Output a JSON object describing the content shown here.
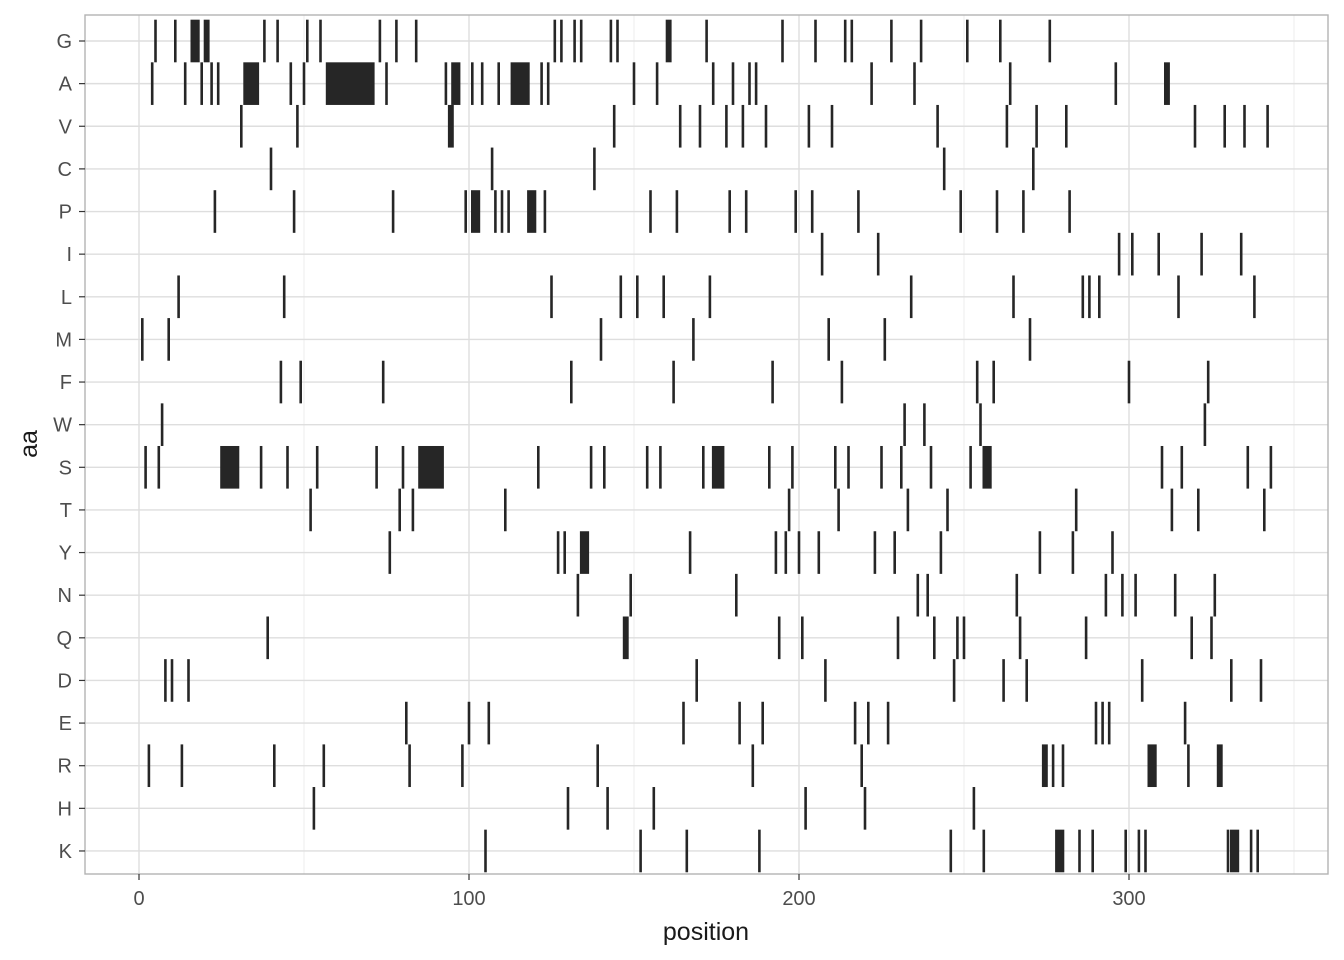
{
  "chart_data": {
    "type": "heatmap",
    "subtype": "tile / barcode plot",
    "title": "",
    "xlabel": "position",
    "ylabel": "aa",
    "xlim": [
      -16,
      360
    ],
    "x_ticks": [
      0,
      100,
      200,
      300
    ],
    "x_minor_gridlines": [
      50,
      150,
      250,
      350
    ],
    "grid": true,
    "legend": "none",
    "fill_color": "#262626",
    "categories": [
      "G",
      "A",
      "V",
      "C",
      "P",
      "I",
      "L",
      "M",
      "F",
      "W",
      "S",
      "T",
      "Y",
      "N",
      "Q",
      "D",
      "E",
      "R",
      "H",
      "K"
    ],
    "series": [
      {
        "name": "G",
        "segments": [
          [
            5,
            5
          ],
          [
            11,
            11
          ],
          [
            16,
            18
          ],
          [
            20,
            21
          ],
          [
            38,
            38
          ],
          [
            42,
            42
          ],
          [
            51,
            51
          ],
          [
            55,
            55
          ],
          [
            73,
            73
          ],
          [
            78,
            78
          ],
          [
            84,
            84
          ],
          [
            126,
            126
          ],
          [
            128,
            128
          ],
          [
            132,
            132
          ],
          [
            134,
            134
          ],
          [
            143,
            143
          ],
          [
            145,
            145
          ],
          [
            160,
            161
          ],
          [
            172,
            172
          ],
          [
            195,
            195
          ],
          [
            205,
            205
          ],
          [
            214,
            214
          ],
          [
            216,
            216
          ],
          [
            228,
            228
          ],
          [
            237,
            237
          ],
          [
            251,
            251
          ],
          [
            261,
            261
          ],
          [
            276,
            276
          ]
        ]
      },
      {
        "name": "A",
        "segments": [
          [
            4,
            4
          ],
          [
            14,
            14
          ],
          [
            19,
            19
          ],
          [
            22,
            22
          ],
          [
            24,
            24
          ],
          [
            32,
            36
          ],
          [
            46,
            46
          ],
          [
            50,
            50
          ],
          [
            57,
            71
          ],
          [
            75,
            75
          ],
          [
            93,
            93
          ],
          [
            95,
            97
          ],
          [
            101,
            101
          ],
          [
            104,
            104
          ],
          [
            109,
            109
          ],
          [
            113,
            118
          ],
          [
            122,
            122
          ],
          [
            124,
            124
          ],
          [
            150,
            150
          ],
          [
            157,
            157
          ],
          [
            174,
            174
          ],
          [
            180,
            180
          ],
          [
            185,
            185
          ],
          [
            187,
            187
          ],
          [
            222,
            222
          ],
          [
            235,
            235
          ],
          [
            264,
            264
          ],
          [
            296,
            296
          ],
          [
            311,
            312
          ]
        ]
      },
      {
        "name": "V",
        "segments": [
          [
            31,
            31
          ],
          [
            48,
            48
          ],
          [
            94,
            95
          ],
          [
            144,
            144
          ],
          [
            164,
            164
          ],
          [
            170,
            170
          ],
          [
            178,
            178
          ],
          [
            183,
            183
          ],
          [
            190,
            190
          ],
          [
            203,
            203
          ],
          [
            210,
            210
          ],
          [
            242,
            242
          ],
          [
            263,
            263
          ],
          [
            272,
            272
          ],
          [
            281,
            281
          ],
          [
            320,
            320
          ],
          [
            329,
            329
          ],
          [
            335,
            335
          ],
          [
            342,
            342
          ]
        ]
      },
      {
        "name": "C",
        "segments": [
          [
            40,
            40
          ],
          [
            107,
            107
          ],
          [
            138,
            138
          ],
          [
            244,
            244
          ],
          [
            271,
            271
          ]
        ]
      },
      {
        "name": "P",
        "segments": [
          [
            23,
            23
          ],
          [
            47,
            47
          ],
          [
            77,
            77
          ],
          [
            99,
            99
          ],
          [
            101,
            103
          ],
          [
            108,
            108
          ],
          [
            110,
            110
          ],
          [
            112,
            112
          ],
          [
            118,
            120
          ],
          [
            123,
            123
          ],
          [
            155,
            155
          ],
          [
            163,
            163
          ],
          [
            179,
            179
          ],
          [
            184,
            184
          ],
          [
            199,
            199
          ],
          [
            204,
            204
          ],
          [
            218,
            218
          ],
          [
            249,
            249
          ],
          [
            260,
            260
          ],
          [
            268,
            268
          ],
          [
            282,
            282
          ]
        ]
      },
      {
        "name": "I",
        "segments": [
          [
            207,
            207
          ],
          [
            224,
            224
          ],
          [
            297,
            297
          ],
          [
            301,
            301
          ],
          [
            309,
            309
          ],
          [
            322,
            322
          ],
          [
            334,
            334
          ]
        ]
      },
      {
        "name": "L",
        "segments": [
          [
            12,
            12
          ],
          [
            44,
            44
          ],
          [
            125,
            125
          ],
          [
            146,
            146
          ],
          [
            151,
            151
          ],
          [
            159,
            159
          ],
          [
            173,
            173
          ],
          [
            234,
            234
          ],
          [
            265,
            265
          ],
          [
            286,
            286
          ],
          [
            288,
            288
          ],
          [
            291,
            291
          ],
          [
            315,
            315
          ],
          [
            338,
            338
          ]
        ]
      },
      {
        "name": "M",
        "segments": [
          [
            1,
            1
          ],
          [
            9,
            9
          ],
          [
            140,
            140
          ],
          [
            168,
            168
          ],
          [
            209,
            209
          ],
          [
            226,
            226
          ],
          [
            270,
            270
          ]
        ]
      },
      {
        "name": "F",
        "segments": [
          [
            43,
            43
          ],
          [
            49,
            49
          ],
          [
            74,
            74
          ],
          [
            131,
            131
          ],
          [
            162,
            162
          ],
          [
            192,
            192
          ],
          [
            213,
            213
          ],
          [
            254,
            254
          ],
          [
            259,
            259
          ],
          [
            300,
            300
          ],
          [
            324,
            324
          ]
        ]
      },
      {
        "name": "W",
        "segments": [
          [
            7,
            7
          ],
          [
            232,
            232
          ],
          [
            238,
            238
          ],
          [
            255,
            255
          ],
          [
            323,
            323
          ]
        ]
      },
      {
        "name": "S",
        "segments": [
          [
            2,
            2
          ],
          [
            6,
            6
          ],
          [
            25,
            30
          ],
          [
            37,
            37
          ],
          [
            45,
            45
          ],
          [
            54,
            54
          ],
          [
            72,
            72
          ],
          [
            80,
            80
          ],
          [
            85,
            92
          ],
          [
            121,
            121
          ],
          [
            137,
            137
          ],
          [
            141,
            141
          ],
          [
            154,
            154
          ],
          [
            158,
            158
          ],
          [
            171,
            171
          ],
          [
            174,
            177
          ],
          [
            191,
            191
          ],
          [
            198,
            198
          ],
          [
            211,
            211
          ],
          [
            215,
            215
          ],
          [
            225,
            225
          ],
          [
            231,
            231
          ],
          [
            240,
            240
          ],
          [
            252,
            252
          ],
          [
            256,
            258
          ],
          [
            310,
            310
          ],
          [
            316,
            316
          ],
          [
            336,
            336
          ],
          [
            343,
            343
          ]
        ]
      },
      {
        "name": "T",
        "segments": [
          [
            52,
            52
          ],
          [
            79,
            79
          ],
          [
            83,
            83
          ],
          [
            111,
            111
          ],
          [
            197,
            197
          ],
          [
            212,
            212
          ],
          [
            233,
            233
          ],
          [
            245,
            245
          ],
          [
            284,
            284
          ],
          [
            313,
            313
          ],
          [
            321,
            321
          ],
          [
            341,
            341
          ]
        ]
      },
      {
        "name": "Y",
        "segments": [
          [
            76,
            76
          ],
          [
            127,
            127
          ],
          [
            129,
            129
          ],
          [
            134,
            136
          ],
          [
            167,
            167
          ],
          [
            193,
            193
          ],
          [
            196,
            196
          ],
          [
            200,
            200
          ],
          [
            206,
            206
          ],
          [
            223,
            223
          ],
          [
            229,
            229
          ],
          [
            243,
            243
          ],
          [
            273,
            273
          ],
          [
            283,
            283
          ],
          [
            295,
            295
          ]
        ]
      },
      {
        "name": "N",
        "segments": [
          [
            133,
            133
          ],
          [
            149,
            149
          ],
          [
            181,
            181
          ],
          [
            236,
            236
          ],
          [
            239,
            239
          ],
          [
            266,
            266
          ],
          [
            293,
            293
          ],
          [
            298,
            298
          ],
          [
            302,
            302
          ],
          [
            314,
            314
          ],
          [
            326,
            326
          ]
        ]
      },
      {
        "name": "Q",
        "segments": [
          [
            39,
            39
          ],
          [
            147,
            148
          ],
          [
            194,
            194
          ],
          [
            201,
            201
          ],
          [
            230,
            230
          ],
          [
            241,
            241
          ],
          [
            248,
            248
          ],
          [
            250,
            250
          ],
          [
            267,
            267
          ],
          [
            287,
            287
          ],
          [
            319,
            319
          ],
          [
            325,
            325
          ]
        ]
      },
      {
        "name": "D",
        "segments": [
          [
            8,
            8
          ],
          [
            10,
            10
          ],
          [
            15,
            15
          ],
          [
            169,
            169
          ],
          [
            208,
            208
          ],
          [
            247,
            247
          ],
          [
            262,
            262
          ],
          [
            269,
            269
          ],
          [
            304,
            304
          ],
          [
            331,
            331
          ],
          [
            340,
            340
          ]
        ]
      },
      {
        "name": "E",
        "segments": [
          [
            81,
            81
          ],
          [
            100,
            100
          ],
          [
            106,
            106
          ],
          [
            165,
            165
          ],
          [
            182,
            182
          ],
          [
            189,
            189
          ],
          [
            217,
            217
          ],
          [
            221,
            221
          ],
          [
            227,
            227
          ],
          [
            290,
            290
          ],
          [
            292,
            292
          ],
          [
            294,
            294
          ],
          [
            317,
            317
          ]
        ]
      },
      {
        "name": "R",
        "segments": [
          [
            3,
            3
          ],
          [
            13,
            13
          ],
          [
            41,
            41
          ],
          [
            56,
            56
          ],
          [
            82,
            82
          ],
          [
            98,
            98
          ],
          [
            139,
            139
          ],
          [
            186,
            186
          ],
          [
            219,
            219
          ],
          [
            274,
            275
          ],
          [
            277,
            277
          ],
          [
            280,
            280
          ],
          [
            306,
            308
          ],
          [
            318,
            318
          ],
          [
            327,
            328
          ]
        ]
      },
      {
        "name": "H",
        "segments": [
          [
            53,
            53
          ],
          [
            130,
            130
          ],
          [
            142,
            142
          ],
          [
            156,
            156
          ],
          [
            202,
            202
          ],
          [
            220,
            220
          ],
          [
            253,
            253
          ]
        ]
      },
      {
        "name": "K",
        "segments": [
          [
            105,
            105
          ],
          [
            152,
            152
          ],
          [
            166,
            166
          ],
          [
            188,
            188
          ],
          [
            246,
            246
          ],
          [
            256,
            256
          ],
          [
            278,
            280
          ],
          [
            285,
            285
          ],
          [
            289,
            289
          ],
          [
            299,
            299
          ],
          [
            303,
            303
          ],
          [
            305,
            305
          ],
          [
            330,
            330
          ],
          [
            331,
            333
          ],
          [
            337,
            337
          ],
          [
            339,
            339
          ]
        ]
      }
    ]
  },
  "axes": {
    "x_title": "position",
    "y_title": "aa",
    "x_tick_labels": [
      "0",
      "100",
      "200",
      "300"
    ]
  },
  "colors": {
    "bar": "#262626",
    "grid_major": "#dedede",
    "grid_minor": "#ececec",
    "panel_border": "#b3b3b3",
    "tick_text": "#4d4d4d",
    "axis_title": "#1a1a1a"
  }
}
